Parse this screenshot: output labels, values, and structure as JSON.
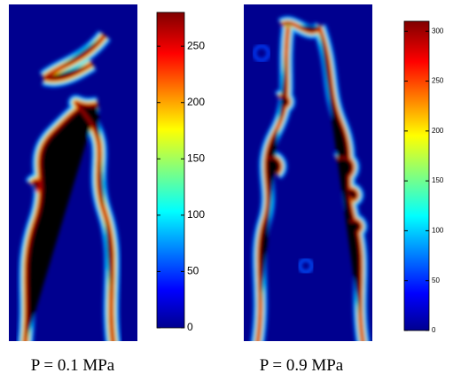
{
  "chart_data": [
    {
      "type": "heatmap",
      "title": "P = 0.1 MPa",
      "colorbar": {
        "lim": [
          0,
          280
        ],
        "ticks": [
          0,
          50,
          100,
          150,
          200,
          250
        ]
      }
    },
    {
      "type": "heatmap",
      "title": "P = 0.9 MPa",
      "colorbar": {
        "lim": [
          0,
          310
        ],
        "ticks": [
          0,
          50,
          100,
          150,
          200,
          250,
          300
        ]
      }
    }
  ]
}
